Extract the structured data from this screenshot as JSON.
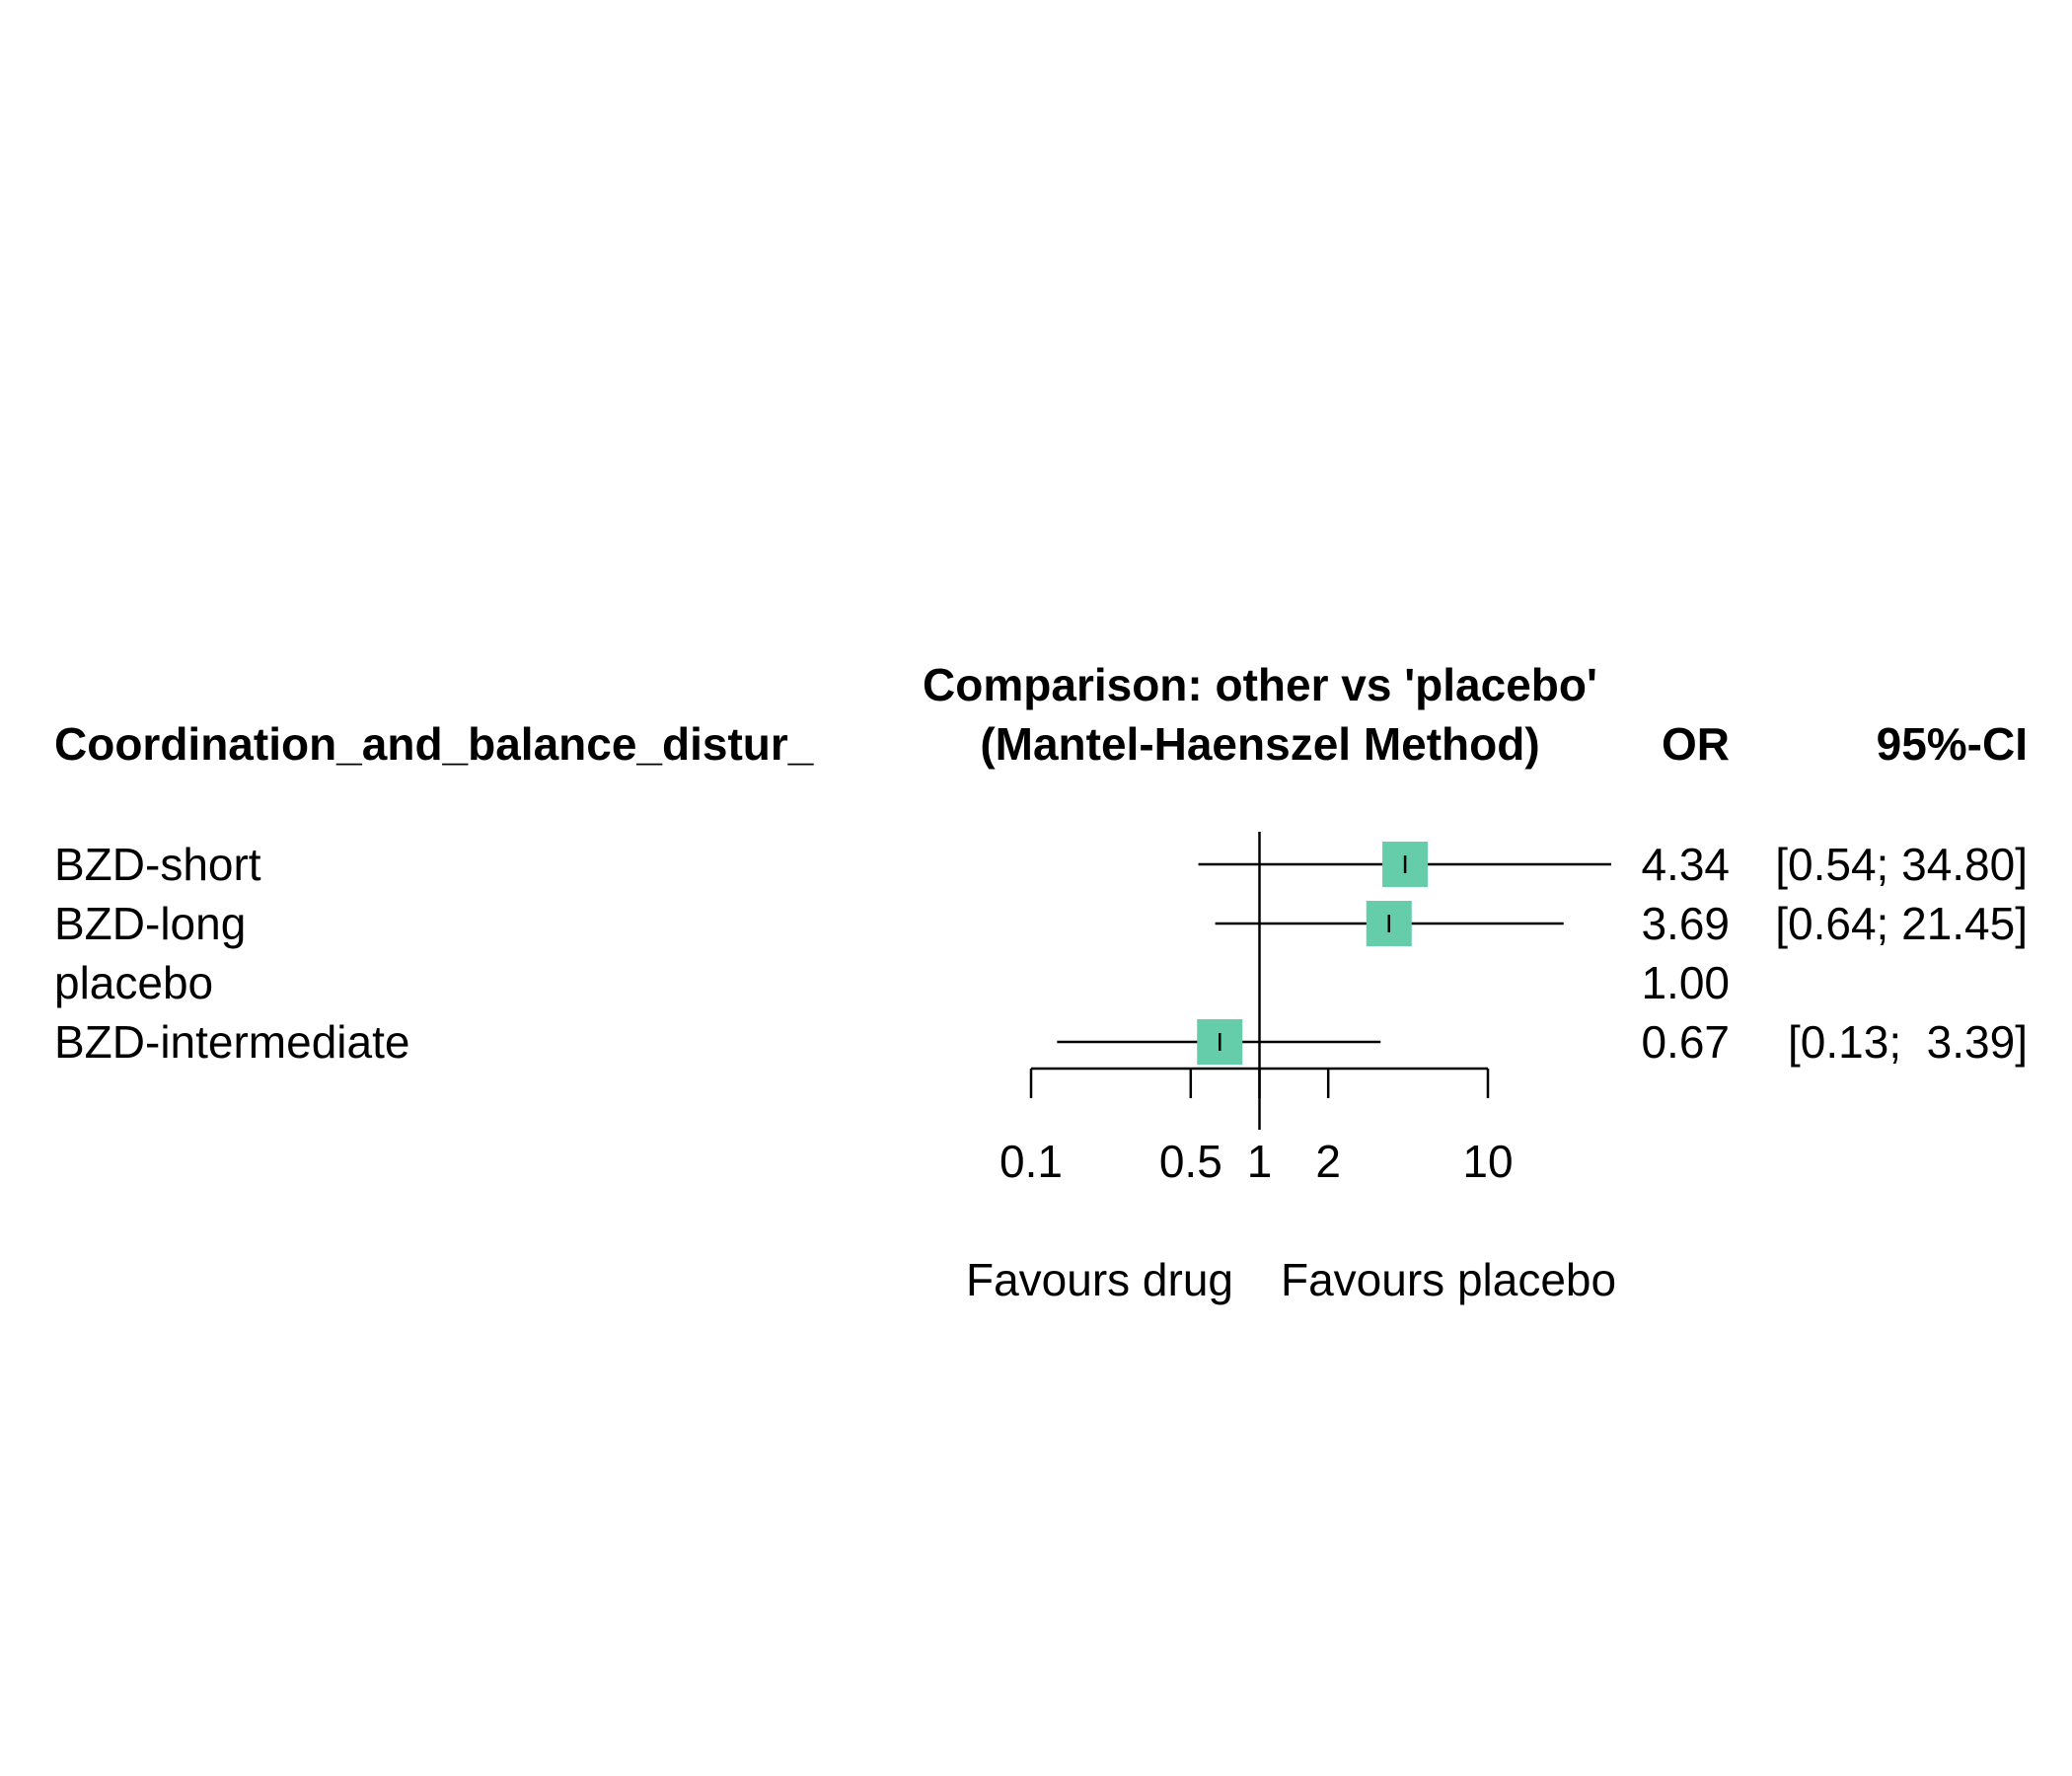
{
  "chart_data": {
    "type": "forest",
    "title_line1": "Comparison: other vs 'placebo'",
    "title_line2": "(Mantel-Haenszel Method)",
    "column_headers": {
      "label": "Coordination_and_balance_distur_",
      "or": "OR",
      "ci": "95%-CI"
    },
    "rows": [
      {
        "label": "BZD-short",
        "or": 4.34,
        "lower": 0.54,
        "upper": 34.8,
        "or_text": "4.34",
        "ci_text": "[0.54; 34.80]",
        "weight": 1.0
      },
      {
        "label": "BZD-long",
        "or": 3.69,
        "lower": 0.64,
        "upper": 21.45,
        "or_text": "3.69",
        "ci_text": "[0.64; 21.45]",
        "weight": 1.0
      },
      {
        "label": "placebo",
        "or": 1.0,
        "lower": null,
        "upper": null,
        "or_text": "1.00",
        "ci_text": "",
        "weight": 0
      },
      {
        "label": "BZD-intermediate",
        "or": 0.67,
        "lower": 0.13,
        "upper": 3.39,
        "or_text": "0.67",
        "ci_text": "[0.13;  3.39]",
        "weight": 1.0
      }
    ],
    "x_axis": {
      "scale": "log",
      "range": [
        0.1,
        10
      ],
      "ticks": [
        0.1,
        0.5,
        1,
        2,
        10
      ],
      "tick_labels": [
        "0.1",
        "0.5",
        "1",
        "2",
        "10"
      ],
      "reference": 1
    },
    "favours_left": "Favours drug",
    "favours_right": "Favours placebo",
    "marker_color": "#66CDAA"
  }
}
